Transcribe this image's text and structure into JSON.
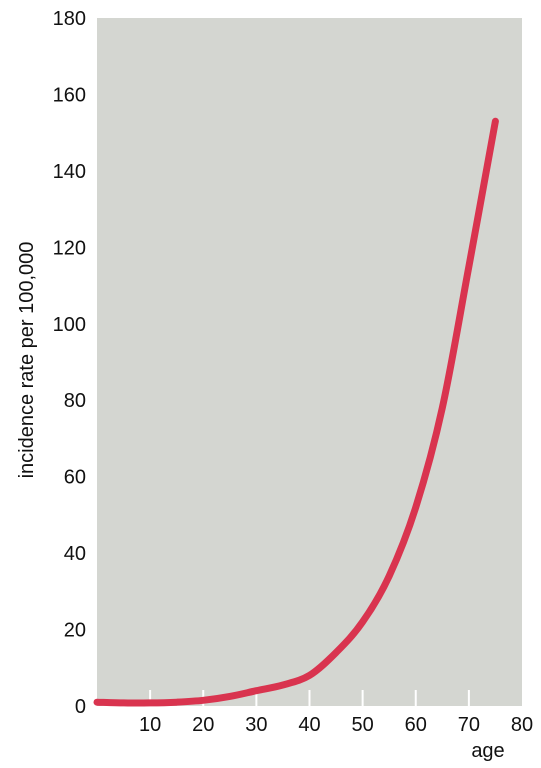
{
  "chart_data": {
    "type": "line",
    "title": "",
    "xlabel": "age",
    "ylabel": "incidence rate per 100,000",
    "xlim": [
      0,
      80
    ],
    "ylim": [
      0,
      180
    ],
    "x_ticks": [
      10,
      20,
      30,
      40,
      50,
      60,
      70,
      80
    ],
    "y_ticks": [
      0,
      20,
      40,
      60,
      80,
      100,
      120,
      140,
      160,
      180
    ],
    "grid": false,
    "legend": "none",
    "series": [
      {
        "x": [
          0,
          5,
          10,
          15,
          20,
          25,
          30,
          35,
          40,
          45,
          50,
          55,
          60,
          65,
          70,
          75
        ],
        "y": [
          1,
          0.8,
          0.8,
          1,
          1.5,
          2.5,
          4,
          5.5,
          8,
          14,
          22,
          34,
          52,
          78,
          115,
          153
        ]
      }
    ]
  },
  "style": {
    "plot_bg": "#d4d6d1",
    "line_color": "#d9344f",
    "tick_color": "#ffffff",
    "text_color": "#111111"
  }
}
